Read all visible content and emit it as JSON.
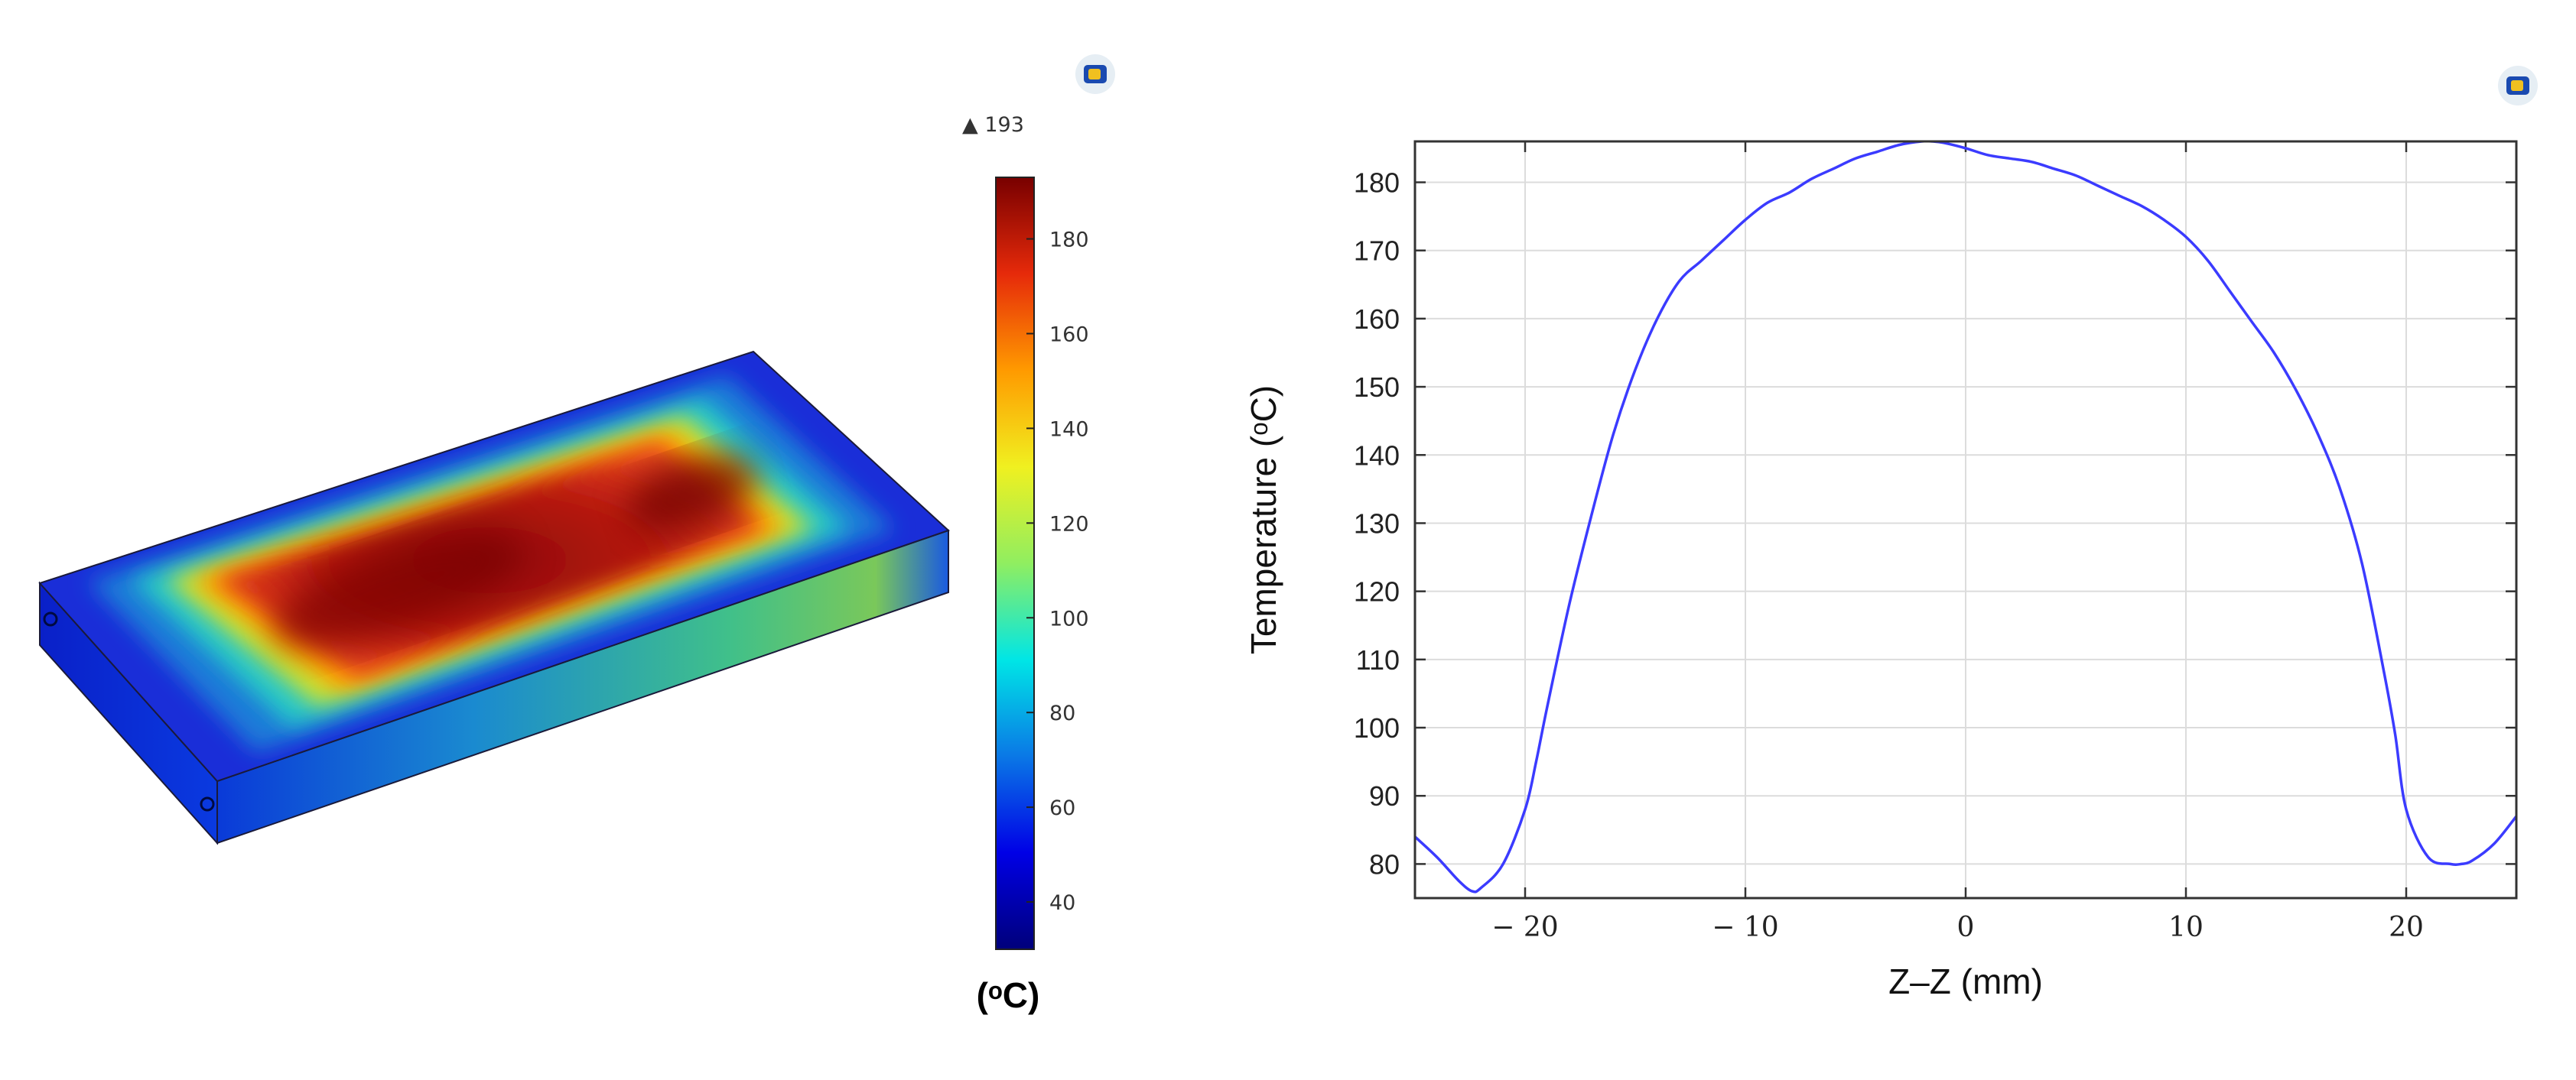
{
  "heatmap": {
    "colorbar": {
      "max_label": "▲ 193",
      "ticks": [
        "180",
        "160",
        "140",
        "120",
        "100",
        "80",
        "60",
        "40"
      ],
      "tick_values": [
        180,
        160,
        140,
        120,
        100,
        80,
        60,
        40
      ],
      "range": [
        30,
        193
      ],
      "unit_label": "(ᵒC)",
      "colors": [
        "#00007a",
        "#0000e6",
        "#0a78e6",
        "#00e6e6",
        "#90ee60",
        "#f0f020",
        "#ff9a00",
        "#e62a0a",
        "#780000"
      ]
    },
    "logo_icon": "comsol-logo-icon"
  },
  "chart_data": {
    "type": "line",
    "xlabel": "Z–Z (mm)",
    "ylabel": "Temperature (ᵒC)",
    "xlim": [
      -25,
      25
    ],
    "ylim": [
      75,
      186
    ],
    "xticks": [
      -20,
      -10,
      0,
      10,
      20
    ],
    "xtick_labels": [
      "− 20",
      "− 10",
      "0",
      "10",
      "20"
    ],
    "yticks": [
      80,
      90,
      100,
      110,
      120,
      130,
      140,
      150,
      160,
      170,
      180
    ],
    "ytick_labels": [
      "80",
      "90",
      "100",
      "110",
      "120",
      "130",
      "140",
      "150",
      "160",
      "170",
      "180"
    ],
    "grid": true,
    "line_color": "#3b3bff",
    "logo_icon": "comsol-logo-icon",
    "series": [
      {
        "x": [
          -25,
          -24,
          -23,
          -22.4,
          -22,
          -21,
          -20,
          -19.5,
          -19,
          -18,
          -17,
          -16,
          -15,
          -14,
          -13,
          -12,
          -11,
          -10,
          -9,
          -8,
          -7,
          -6,
          -5,
          -4,
          -3,
          -2,
          -1.5,
          -1,
          0,
          1,
          2,
          3,
          4,
          5,
          6,
          7,
          8,
          9,
          10,
          11,
          12,
          13,
          14,
          15,
          16,
          17,
          18,
          19,
          19.5,
          20,
          21,
          22,
          22.5,
          23,
          24,
          25
        ],
        "y": [
          84,
          81,
          77.5,
          76,
          76.5,
          80,
          88,
          95,
          103,
          118,
          131,
          143,
          152.5,
          160,
          165.5,
          168.5,
          171.5,
          174.5,
          177,
          178.5,
          180.5,
          182,
          183.5,
          184.5,
          185.5,
          186,
          186,
          185.8,
          185,
          184,
          183.5,
          183,
          182,
          181,
          179.5,
          178,
          176.5,
          174.5,
          172,
          168.5,
          164,
          159.5,
          155,
          149.5,
          143,
          135,
          124,
          108,
          99,
          88,
          81,
          80,
          80,
          80.5,
          83,
          87
        ]
      }
    ]
  }
}
